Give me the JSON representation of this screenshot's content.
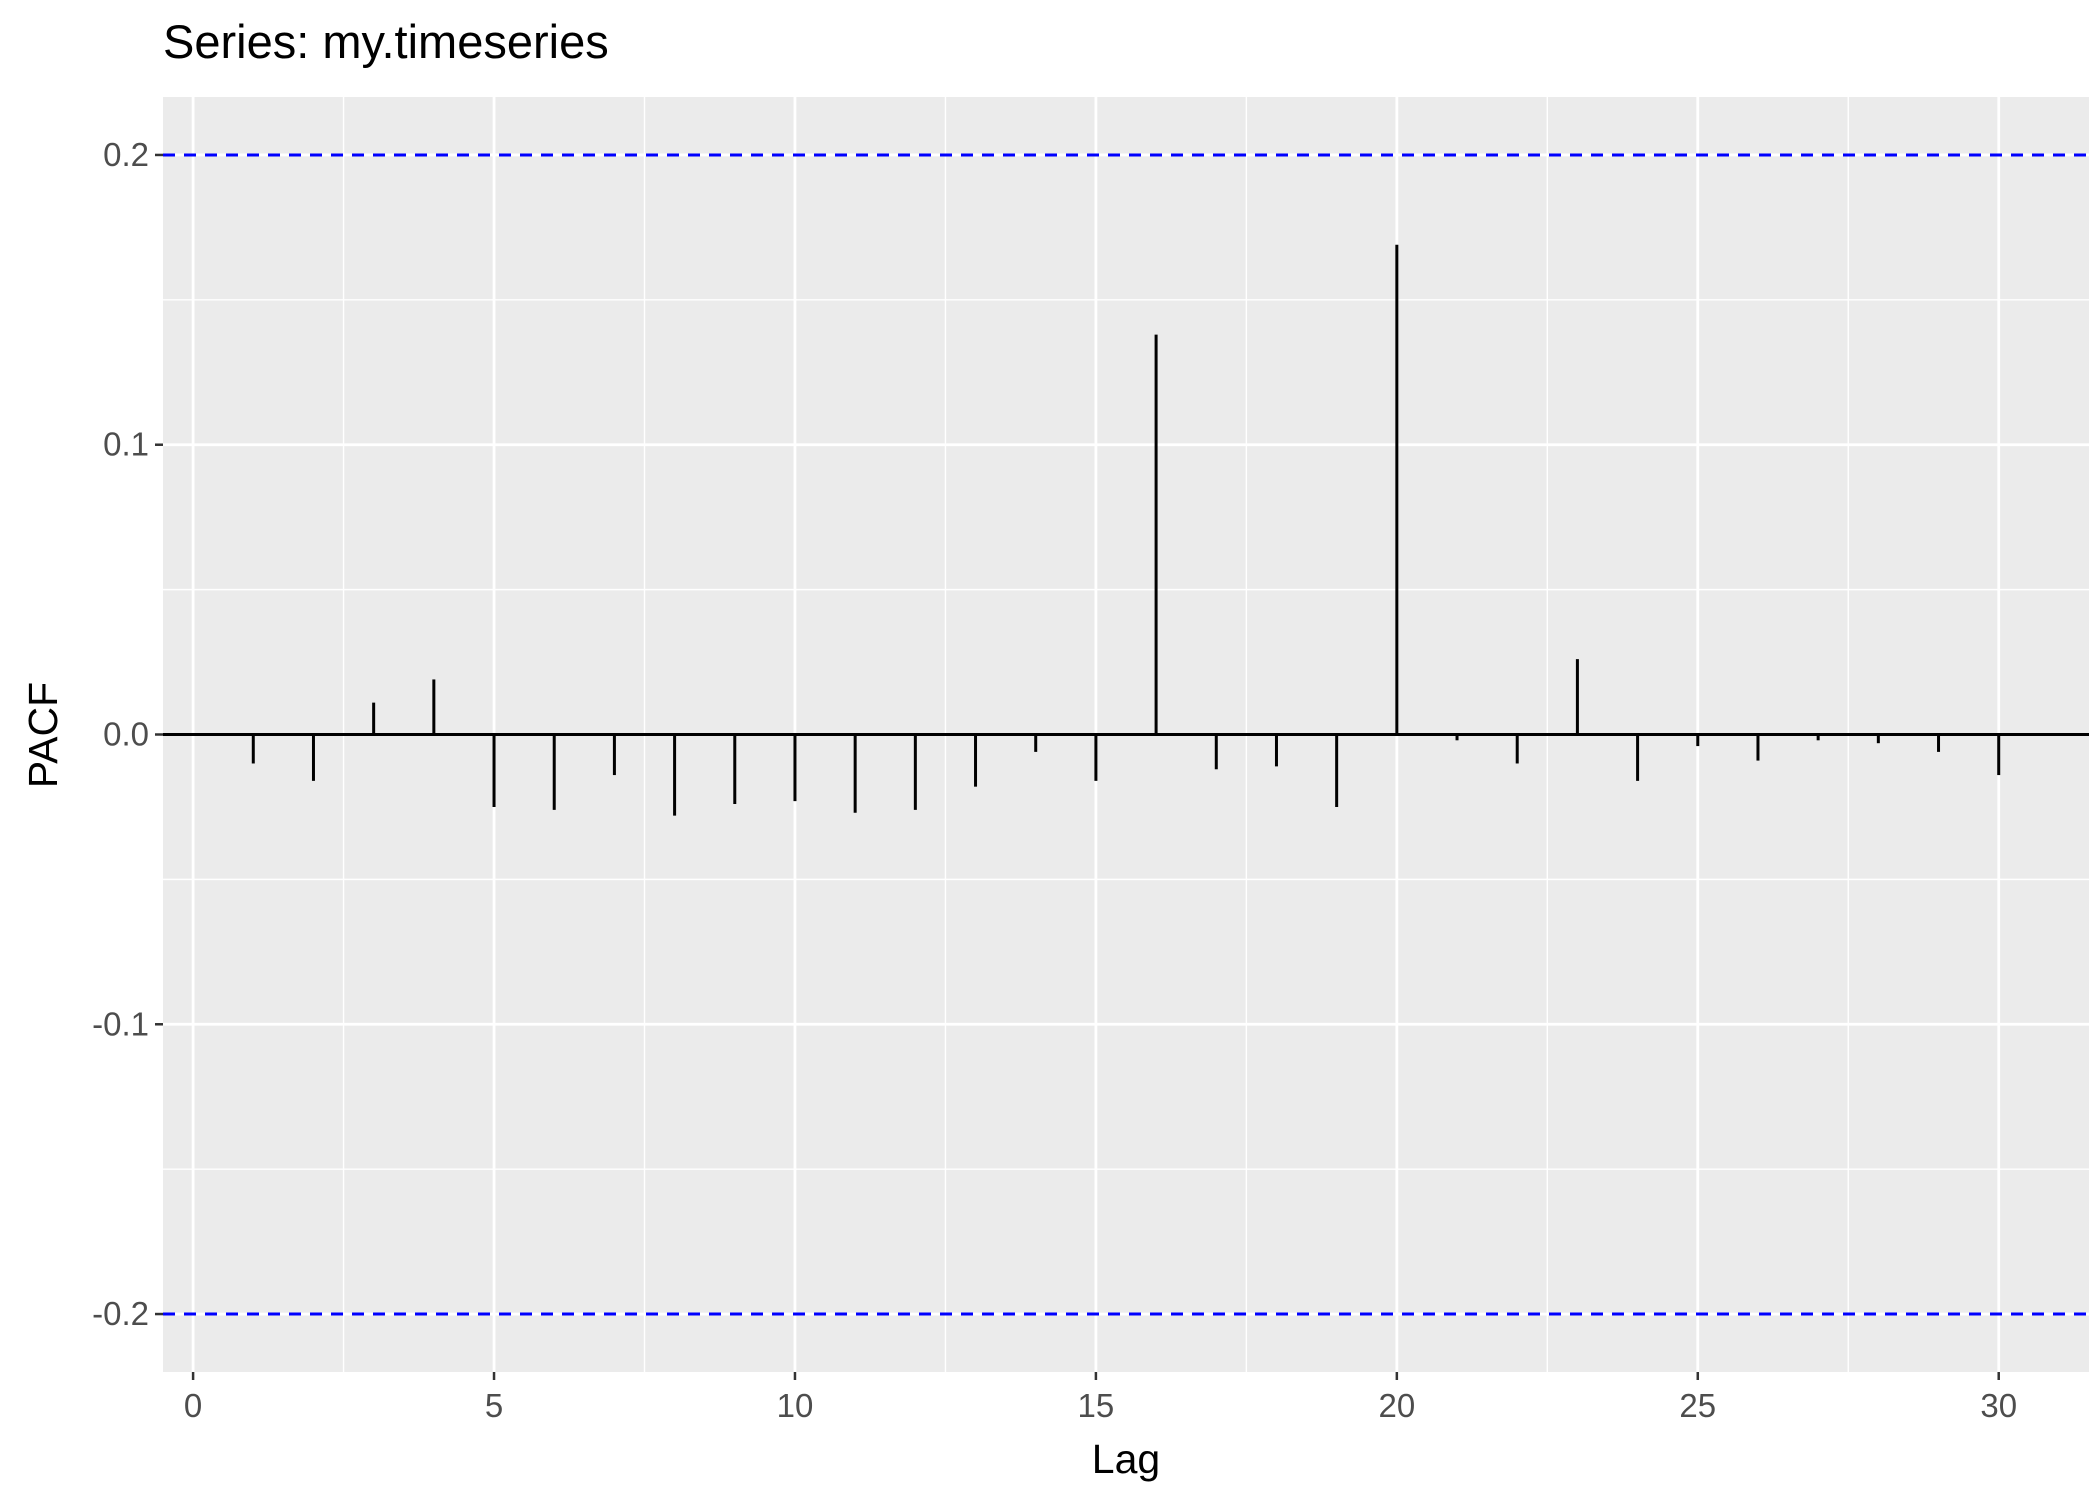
{
  "chart_data": {
    "type": "bar",
    "subtype": "pacf-lollipop",
    "title": "Series: my.timeseries",
    "xlabel": "Lag",
    "ylabel": "PACF",
    "xlim": [
      -0.5,
      31.5
    ],
    "ylim": [
      -0.22,
      0.22
    ],
    "x_ticks": [
      0,
      5,
      10,
      15,
      20,
      25,
      30
    ],
    "x_tick_labels": [
      "0",
      "5",
      "10",
      "15",
      "20",
      "25",
      "30"
    ],
    "y_ticks": [
      -0.2,
      -0.1,
      0.0,
      0.1,
      0.2
    ],
    "y_tick_labels": [
      "-0.2",
      "-0.1",
      "0.0",
      "0.1",
      "0.2"
    ],
    "grid": true,
    "lags": [
      1,
      2,
      3,
      4,
      5,
      6,
      7,
      8,
      9,
      10,
      11,
      12,
      13,
      14,
      15,
      16,
      17,
      18,
      19,
      20,
      21,
      22,
      23,
      24,
      25,
      26,
      27,
      28,
      29,
      30
    ],
    "values": [
      -0.01,
      -0.016,
      0.011,
      0.019,
      -0.025,
      -0.026,
      -0.014,
      -0.028,
      -0.024,
      -0.023,
      -0.027,
      -0.026,
      -0.018,
      -0.006,
      -0.016,
      0.138,
      -0.012,
      -0.011,
      -0.025,
      0.169,
      -0.002,
      -0.01,
      0.026,
      -0.016,
      -0.004,
      -0.009,
      -0.002,
      -0.003,
      -0.006,
      -0.014
    ],
    "confidence_bounds": [
      -0.2,
      0.2
    ],
    "colors": {
      "panel": "#ebebeb",
      "grid": "#ffffff",
      "bars": "#000000",
      "bounds": "#0000ff",
      "tick_text": "#4d4d4d"
    }
  }
}
